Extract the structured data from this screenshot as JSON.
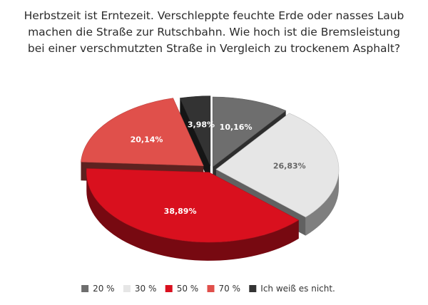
{
  "chart_data": {
    "type": "pie",
    "title_lines": [
      "Herbstzeit ist Erntezeit. Verschleppte feuchte Erde oder nasses Laub",
      "machen die Straße zur Rutschbahn. Wie hoch ist die Bremsleistung",
      "bei einer verschmutzten Straße in Vergleich zu trockenem Asphalt?"
    ],
    "slices": [
      {
        "label": "20 %",
        "value": 10.16,
        "value_label": "10,16%",
        "color": "#6e6e6e",
        "label_color": "#ffffff"
      },
      {
        "label": "30 %",
        "value": 26.83,
        "value_label": "26,83%",
        "color": "#e6e6e6",
        "label_color": "#666666"
      },
      {
        "label": "50 %",
        "value": 38.89,
        "value_label": "38,89%",
        "color": "#d9101e",
        "label_color": "#ffffff"
      },
      {
        "label": "70 %",
        "value": 20.14,
        "value_label": "20,14%",
        "color": "#e0504b",
        "label_color": "#ffffff"
      },
      {
        "label": "Ich weiß es nicht.",
        "value": 3.98,
        "value_label": "3,98%",
        "color": "#333333",
        "label_color": "#ffffff"
      }
    ],
    "legend_position": "bottom",
    "three_d": true,
    "exploded": true
  }
}
